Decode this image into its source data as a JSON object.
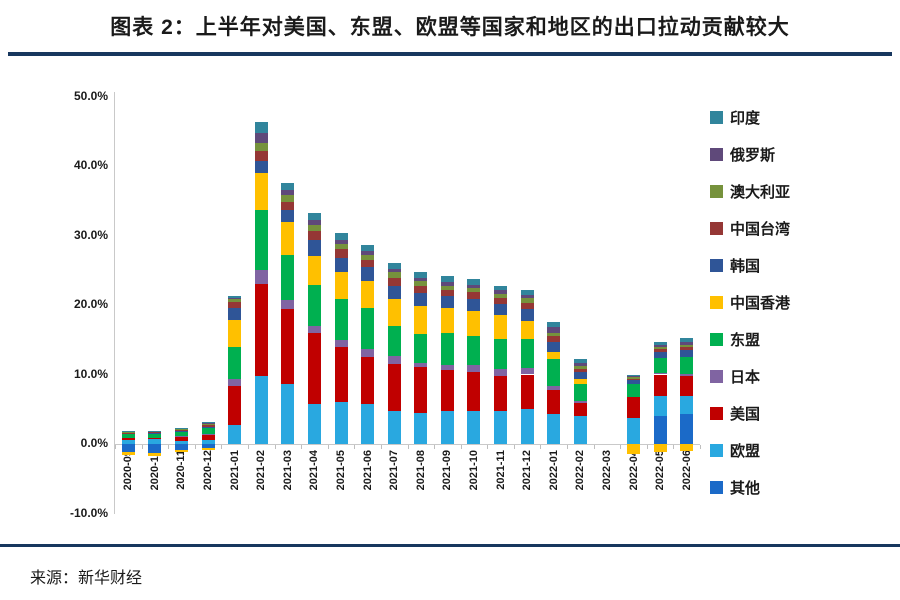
{
  "page": {
    "title": "图表 2：上半年对美国、东盟、欧盟等国家和地区的出口拉动贡献较大",
    "source": "来源：新华财经"
  },
  "chart_data": {
    "type": "bar",
    "stacked": true,
    "title": "图表 2：上半年对美国、东盟、欧盟等国家和地区的出口拉动贡献较大",
    "xlabel": "",
    "ylabel": "",
    "unit": "percentage-point contribution (%)",
    "grid": false,
    "legend_position": "right",
    "ylim": [
      -10,
      50
    ],
    "y_axis": {
      "ticks": [
        {
          "v": 50,
          "label": "50.0%"
        },
        {
          "v": 40,
          "label": "40.0%"
        },
        {
          "v": 30,
          "label": "30.0%"
        },
        {
          "v": 20,
          "label": "20.0%"
        },
        {
          "v": 10,
          "label": "10.0%"
        },
        {
          "v": 0,
          "label": "0.0%"
        },
        {
          "v": -10,
          "label": "-10.0%"
        }
      ]
    },
    "categories": [
      "2020-09",
      "2020-10",
      "2020-11",
      "2020-12",
      "2021-01",
      "2021-02",
      "2021-03",
      "2021-04",
      "2021-05",
      "2021-06",
      "2021-07",
      "2021-08",
      "2021-09",
      "2021-10",
      "2021-11",
      "2021-12",
      "2022-01",
      "2022-02",
      "2022-03",
      "2022-04",
      "2022-05",
      "2022-06"
    ],
    "legend_top_to_bottom": [
      "印度",
      "俄罗斯",
      "澳大利亚",
      "中国台湾",
      "韩国",
      "中国香港",
      "东盟",
      "日本",
      "美国",
      "欧盟",
      "其他"
    ],
    "series_bottom_to_top": [
      {
        "key": "others",
        "name": "其他",
        "color": "#1B6AC8",
        "values": [
          -1.2,
          -1.3,
          -0.9,
          -0.6,
          0,
          0,
          0,
          0,
          0,
          0,
          0,
          0,
          0,
          0,
          0,
          0,
          0,
          0,
          0,
          0,
          4.0,
          4.3
        ]
      },
      {
        "key": "eu",
        "name": "欧盟",
        "color": "#29A8E0",
        "values": [
          0.6,
          0.7,
          0.5,
          0.6,
          2.8,
          9.8,
          8.6,
          5.8,
          6.0,
          5.7,
          4.8,
          4.5,
          4.8,
          4.8,
          4.8,
          5.0,
          4.3,
          4.0,
          0,
          3.8,
          2.9,
          2.6
        ]
      },
      {
        "key": "usa",
        "name": "美国",
        "color": "#C00000",
        "values": [
          0.2,
          0.2,
          0.5,
          0.8,
          5.5,
          13.2,
          10.8,
          10.2,
          7.9,
          6.8,
          6.7,
          6.6,
          5.8,
          5.5,
          5.0,
          5.0,
          3.4,
          1.9,
          0,
          3.0,
          3.1,
          2.9
        ]
      },
      {
        "key": "japan",
        "name": "日本",
        "color": "#8064A2",
        "values": [
          0,
          0,
          0.1,
          0.1,
          1.1,
          2.0,
          1.3,
          1.0,
          1.0,
          1.1,
          1.2,
          0.6,
          0.7,
          1.0,
          1.0,
          1.0,
          0.7,
          0.3,
          0,
          0,
          0.2,
          0.3
        ]
      },
      {
        "key": "asean",
        "name": "东盟",
        "color": "#00B050",
        "values": [
          0.6,
          0.6,
          0.7,
          0.9,
          4.5,
          8.7,
          6.5,
          5.9,
          6.0,
          5.9,
          4.3,
          4.1,
          4.6,
          4.3,
          4.3,
          4.1,
          3.8,
          2.4,
          0,
          1.9,
          2.2,
          2.4
        ]
      },
      {
        "key": "hongkong",
        "name": "中国香港",
        "color": "#FFC000",
        "values": [
          -0.4,
          -0.4,
          -0.3,
          -0.3,
          4.0,
          5.3,
          4.8,
          4.2,
          3.8,
          4.0,
          3.9,
          4.1,
          3.6,
          3.6,
          3.4,
          2.6,
          1.0,
          0.7,
          0,
          -1.4,
          -1.1,
          -1.0
        ]
      },
      {
        "key": "korea",
        "name": "韩国",
        "color": "#2F5597",
        "values": [
          0,
          0.1,
          0.1,
          0.1,
          1.6,
          1.7,
          1.6,
          2.2,
          2.1,
          1.9,
          1.9,
          1.8,
          1.8,
          1.7,
          1.6,
          1.7,
          1.5,
          1.0,
          0,
          0.5,
          0.8,
          1.0
        ]
      },
      {
        "key": "taiwan",
        "name": "中国台湾",
        "color": "#953735",
        "values": [
          0.2,
          0.1,
          0.1,
          0.2,
          1.0,
          1.4,
          1.2,
          1.3,
          1.2,
          1.1,
          1.1,
          1.0,
          0.9,
          0.9,
          0.9,
          0.9,
          0.8,
          0.5,
          0,
          0.2,
          0.4,
          0.5
        ]
      },
      {
        "key": "australia",
        "name": "澳大利亚",
        "color": "#76923C",
        "values": [
          0.1,
          0.1,
          0.2,
          0.2,
          0.3,
          1.2,
          1.0,
          0.9,
          0.8,
          0.7,
          0.8,
          0.7,
          0.6,
          0.6,
          0.6,
          0.7,
          0.5,
          0.4,
          0,
          0.2,
          0.3,
          0.3
        ]
      },
      {
        "key": "russia",
        "name": "俄罗斯",
        "color": "#5F497A",
        "values": [
          0,
          0,
          0,
          0.1,
          0.2,
          1.4,
          0.8,
          0.8,
          0.6,
          0.6,
          0.5,
          0.5,
          0.5,
          0.5,
          0.5,
          0.5,
          0.8,
          0.4,
          0,
          0.2,
          0.4,
          0.4
        ]
      },
      {
        "key": "india",
        "name": "印度",
        "color": "#31859C",
        "values": [
          0.1,
          0.1,
          0.1,
          0.1,
          0.3,
          1.7,
          1.0,
          1.0,
          0.9,
          0.9,
          0.8,
          0.8,
          0.9,
          0.9,
          0.7,
          0.7,
          0.7,
          0.6,
          0,
          0.2,
          0.4,
          0.5
        ]
      }
    ]
  }
}
